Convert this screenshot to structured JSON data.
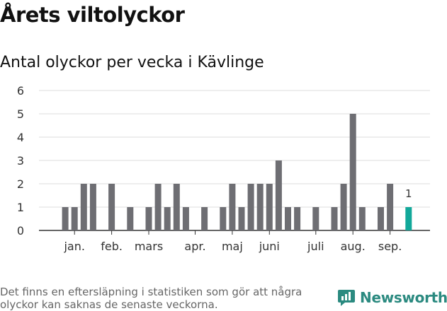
{
  "header": {
    "title": "Årets viltolyckor",
    "subtitle": "Antal olyckor per vecka i Kävlinge"
  },
  "footer": {
    "note": "Det finns en eftersläpning i statistiken som gör att några olyckor kan saknas de senaste veckorna.",
    "brand": "Newsworthy"
  },
  "colors": {
    "bar": "#6e6e73",
    "highlight": "#12a89a",
    "brand": "#2b8a80"
  },
  "chart_data": {
    "type": "bar",
    "title": "Antal olyckor per vecka i Kävlinge",
    "xlabel": "",
    "ylabel": "",
    "ylim": [
      0,
      6
    ],
    "yticks": [
      0,
      1,
      2,
      3,
      4,
      5,
      6
    ],
    "grid": true,
    "weeks": [
      1,
      2,
      3,
      4,
      5,
      6,
      7,
      8,
      9,
      10,
      11,
      12,
      13,
      14,
      15,
      16,
      17,
      18,
      19,
      20,
      21,
      22,
      23,
      24,
      25,
      26,
      27,
      28,
      29,
      30,
      31,
      32,
      33,
      34,
      35,
      36,
      37,
      38,
      39
    ],
    "values": [
      0,
      1,
      1,
      2,
      2,
      0,
      2,
      0,
      1,
      0,
      1,
      2,
      1,
      2,
      1,
      0,
      1,
      0,
      1,
      2,
      1,
      2,
      2,
      2,
      3,
      1,
      1,
      0,
      1,
      0,
      1,
      2,
      5,
      1,
      0,
      1,
      2,
      0,
      1
    ],
    "highlight_week": 39,
    "highlight_label": "1",
    "month_labels": [
      {
        "label": "jan.",
        "week": 3
      },
      {
        "label": "feb.",
        "week": 7
      },
      {
        "label": "mars",
        "week": 11
      },
      {
        "label": "apr.",
        "week": 16
      },
      {
        "label": "maj",
        "week": 20
      },
      {
        "label": "juni",
        "week": 24
      },
      {
        "label": "juli",
        "week": 29
      },
      {
        "label": "aug.",
        "week": 33
      },
      {
        "label": "sep.",
        "week": 37
      }
    ]
  }
}
